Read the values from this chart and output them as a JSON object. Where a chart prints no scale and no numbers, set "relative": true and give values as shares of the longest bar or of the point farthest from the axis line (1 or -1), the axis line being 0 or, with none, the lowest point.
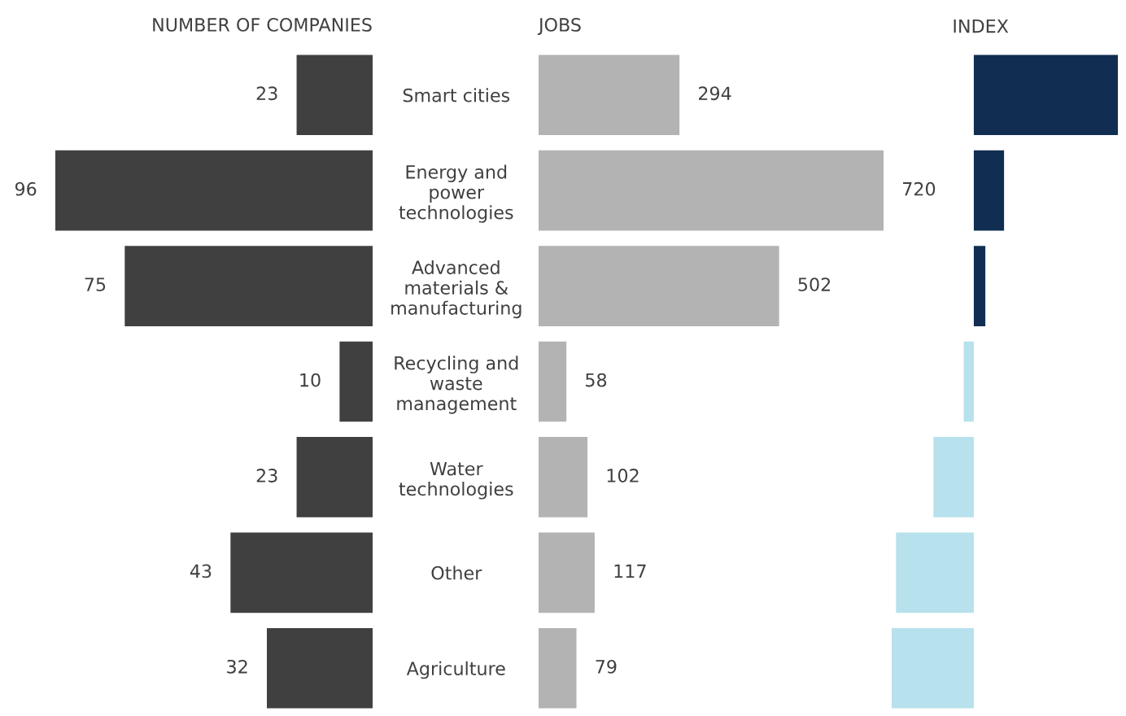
{
  "chart_data": [
    {
      "type": "bar",
      "orientation": "horizontal",
      "title": "NUMBER OF COMPANIES",
      "categories": [
        "Smart cities",
        "Energy and\npower\ntechnologies",
        "Advanced\nmaterials &\nmanufacturing",
        "Recycling and\nwaste\nmanagement",
        "Water\ntechnologies",
        "Other",
        "Agriculture"
      ],
      "values": [
        23,
        96,
        75,
        10,
        23,
        43,
        32
      ],
      "color": "#404040",
      "xlim": [
        96,
        0
      ],
      "data_labels": true,
      "tick_labels": "y"
    },
    {
      "type": "bar",
      "orientation": "horizontal",
      "title": "JOBS",
      "categories": [
        null,
        null,
        null,
        null,
        null,
        null,
        null
      ],
      "values": [
        294,
        720,
        502,
        58,
        102,
        117,
        79
      ],
      "color": "#b2b3b2",
      "xlim": [
        0,
        720
      ],
      "data_labels": true,
      "tick_labels": false
    },
    {
      "type": "bar",
      "orientation": "horizontal",
      "title": "INDEX",
      "categories": [
        null,
        null,
        null,
        null,
        null,
        null,
        null
      ],
      "values": [
        1,
        0.21,
        0.08,
        -0.07,
        -0.28,
        -0.54,
        -0.57
      ],
      "colors": [
        "#112d52",
        "#112d52",
        "#112d52",
        "#b7e1ec",
        "#b7e1ec",
        "#b7e1ec",
        "#b7e1ec"
      ],
      "relative": true,
      "tick_labels": false
    }
  ]
}
